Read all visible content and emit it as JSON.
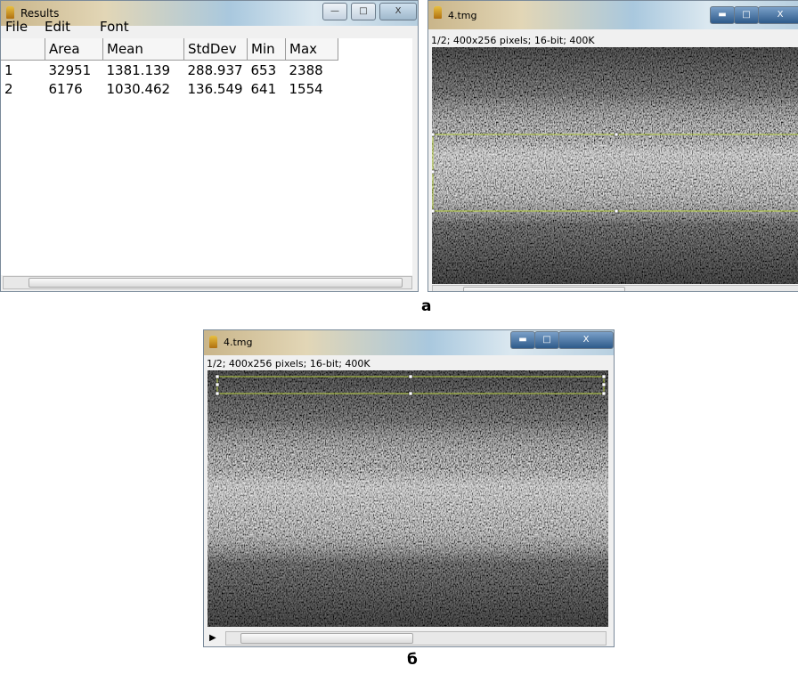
{
  "results_window": {
    "title": "Results",
    "menu": [
      "File",
      "Edit",
      "Font"
    ],
    "table": {
      "headers": [
        "Area",
        "Mean",
        "StdDev",
        "Min",
        "Max"
      ],
      "rows": [
        [
          1,
          32951,
          1381.139,
          288.937,
          653,
          2388
        ],
        [
          2,
          6176,
          1030.462,
          136.549,
          641,
          1554
        ]
      ]
    }
  },
  "image_window_a": {
    "title": "4.tmg",
    "info": "1/2; 400x256 pixels; 16-bit; 400K"
  },
  "label_a": "а",
  "image_window_b": {
    "title": "4.tmg",
    "info": "1/2; 400x256 pixels; 16-bit; 400K"
  },
  "label_b": "б"
}
